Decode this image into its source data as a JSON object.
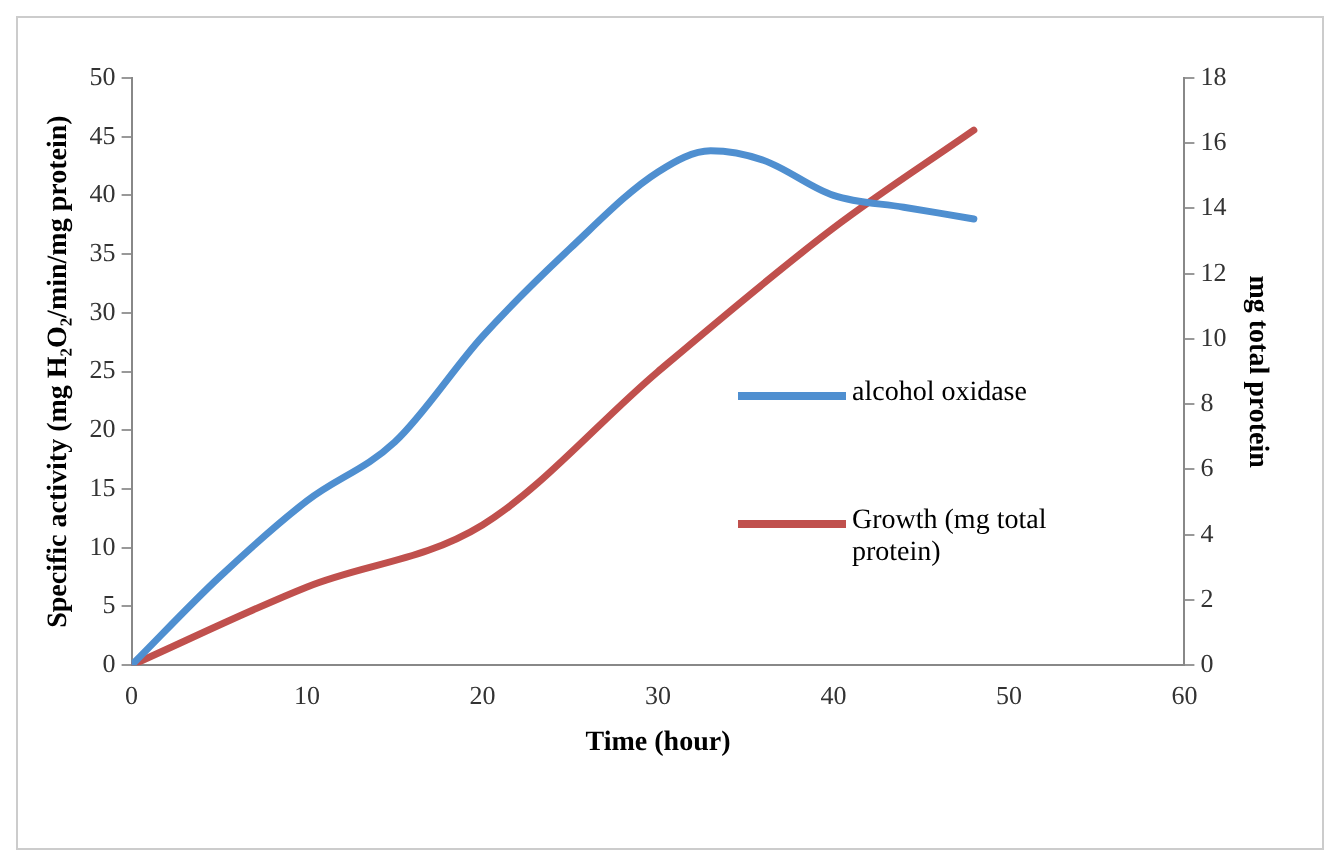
{
  "chart_data": {
    "type": "line",
    "xlabel": "Time (hour)",
    "ylabel": "Specific activity (mg H₂O₂/min/mg protein)",
    "y2label": "mg total protein",
    "x": [
      0,
      5,
      10,
      15,
      20,
      25,
      30,
      33,
      36,
      40,
      44,
      48
    ],
    "series": [
      {
        "name": "alcohol oxidase",
        "color": "#4f8fd0",
        "values": [
          0,
          7.5,
          14,
          19,
          28,
          35.5,
          42,
          43.8,
          43,
          40,
          39,
          38
        ]
      },
      {
        "name": "Growth (mg total protein)",
        "color": "#c0504d",
        "axis": "y2",
        "x": [
          0,
          10,
          20,
          30,
          40,
          48
        ],
        "values": [
          0,
          2.4,
          4.3,
          9,
          13.4,
          16.4
        ]
      }
    ],
    "xlim": [
      0,
      60
    ],
    "xticks": [
      0,
      10,
      20,
      30,
      40,
      50,
      60
    ],
    "ylim": [
      0,
      50
    ],
    "yticks": [
      0,
      5,
      10,
      15,
      20,
      25,
      30,
      35,
      40,
      45,
      50
    ],
    "y2lim": [
      0,
      18
    ],
    "y2ticks": [
      0,
      2,
      4,
      6,
      8,
      10,
      12,
      14,
      16,
      18
    ],
    "grid": false,
    "legend": "right",
    "marker": "none",
    "line_style": "solid"
  }
}
